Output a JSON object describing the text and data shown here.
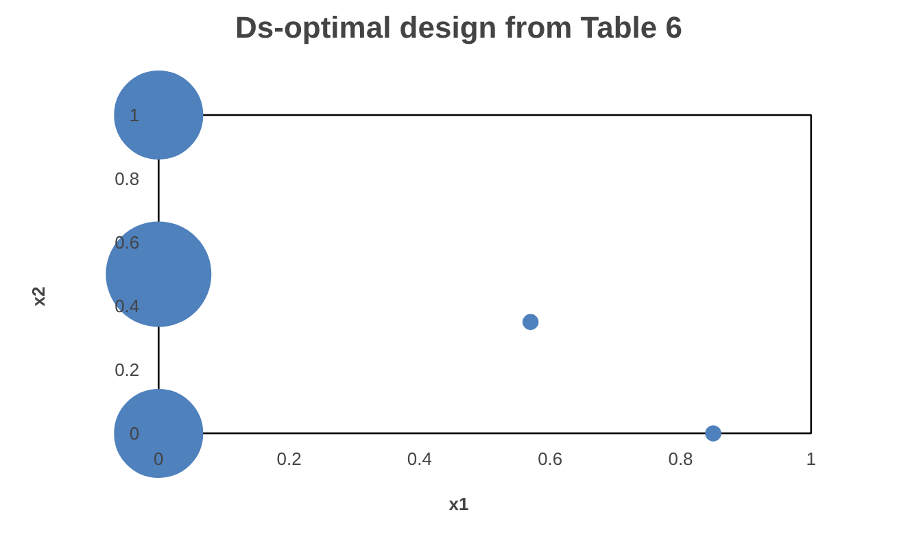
{
  "chart_data": {
    "type": "bubble",
    "title": "Ds-optimal design from Table 6",
    "xlabel": "x1",
    "ylabel": "x2",
    "x": [
      0,
      0,
      0,
      0.57,
      0.85
    ],
    "values": [
      1,
      0.5,
      0,
      0.35,
      0
    ],
    "sizes": [
      0.71,
      1,
      0.71,
      0.02,
      0.02
    ],
    "color": "#4f81bd",
    "xlim": [
      0,
      1
    ],
    "ylim": [
      0,
      1
    ],
    "xticks": [
      0,
      0.2,
      0.4,
      0.6,
      0.8,
      1
    ],
    "yticks": [
      0,
      0.2,
      0.4,
      0.6,
      0.8,
      1
    ],
    "grid": false,
    "legend": false
  }
}
